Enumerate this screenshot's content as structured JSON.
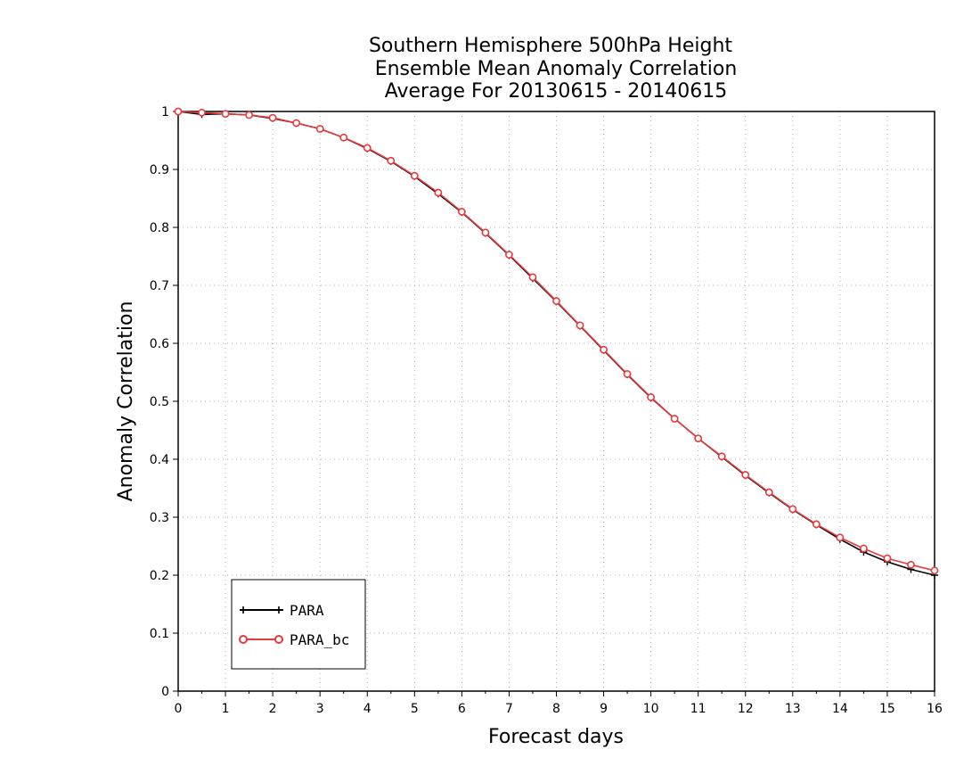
{
  "chart_data": {
    "type": "line",
    "title": [
      "Southern Hemisphere 500hPa Height",
      "Ensemble Mean Anomaly Correlation",
      "Average For 20130615 - 20140615"
    ],
    "xlabel": "Forecast days",
    "ylabel": "Anomaly Correlation",
    "xlim": [
      0,
      16
    ],
    "ylim": [
      0,
      1
    ],
    "x_ticks": [
      0,
      1,
      2,
      3,
      4,
      5,
      6,
      7,
      8,
      9,
      10,
      11,
      12,
      13,
      14,
      15,
      16
    ],
    "y_ticks": [
      0,
      0.1,
      0.2,
      0.3,
      0.4,
      0.5,
      0.6,
      0.7,
      0.8,
      0.9,
      1
    ],
    "grid": true,
    "legend_position": "bottom-left",
    "x": [
      0,
      0.5,
      1,
      1.5,
      2,
      2.5,
      3,
      3.5,
      4,
      4.5,
      5,
      5.5,
      6,
      6.5,
      7,
      7.5,
      8,
      8.5,
      9,
      9.5,
      10,
      10.5,
      11,
      11.5,
      12,
      12.5,
      13,
      13.5,
      14,
      14.5,
      15,
      15.5,
      16
    ],
    "series": [
      {
        "name": "PARA",
        "color": "#000000",
        "marker": "plus",
        "values": [
          1.0,
          0.995,
          0.996,
          0.994,
          0.988,
          0.98,
          0.97,
          0.955,
          0.936,
          0.914,
          0.888,
          0.858,
          0.826,
          0.79,
          0.752,
          0.712,
          0.672,
          0.63,
          0.588,
          0.546,
          0.506,
          0.47,
          0.436,
          0.404,
          0.372,
          0.342,
          0.313,
          0.287,
          0.262,
          0.24,
          0.223,
          0.21,
          0.2
        ]
      },
      {
        "name": "PARA_bc",
        "color": "#e8393b",
        "marker": "circle",
        "values": [
          1.0,
          0.998,
          0.996,
          0.994,
          0.989,
          0.98,
          0.97,
          0.955,
          0.937,
          0.915,
          0.889,
          0.86,
          0.827,
          0.791,
          0.753,
          0.714,
          0.673,
          0.631,
          0.589,
          0.547,
          0.507,
          0.47,
          0.436,
          0.405,
          0.373,
          0.343,
          0.314,
          0.288,
          0.265,
          0.246,
          0.229,
          0.218,
          0.208
        ]
      }
    ]
  }
}
